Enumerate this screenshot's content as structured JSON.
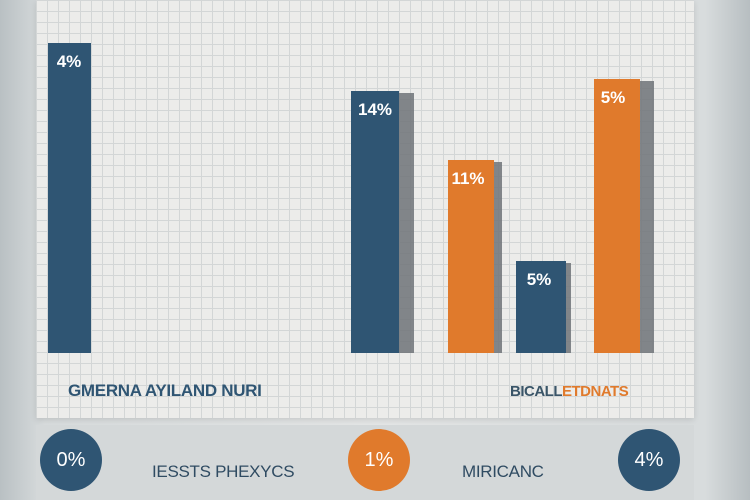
{
  "chart_data": {
    "type": "bar",
    "title": "",
    "xlabel": "",
    "ylabel": "",
    "bars": [
      {
        "label": "4%",
        "color": "#2f5573",
        "value": 310
      },
      {
        "label": "14%",
        "color": "#2f5573",
        "value": 262
      },
      {
        "label": "11%",
        "color": "#e07a2c",
        "value": 193
      },
      {
        "label": "5%",
        "color": "#2f5573",
        "value": 92
      },
      {
        "label": "5%",
        "color": "#e07a2c",
        "value": 274
      }
    ]
  },
  "legend": {
    "left_label": "GMERNA AYILAND NURI",
    "right_label_part1": "BICALL",
    "right_label_part2": "ETDNATS"
  },
  "bottom": {
    "circles": [
      {
        "label": "0%",
        "color": "#2f5573"
      },
      {
        "label": "1%",
        "color": "#e07a2c"
      },
      {
        "label": "4%",
        "color": "#2f5573"
      }
    ],
    "texts": [
      "IESSTS PHEXYCS",
      "MIRICANC"
    ]
  },
  "colors": {
    "navy": "#2f5573",
    "orange": "#e07a2c",
    "panel": "#ececea",
    "band": "#d4d8d9"
  }
}
